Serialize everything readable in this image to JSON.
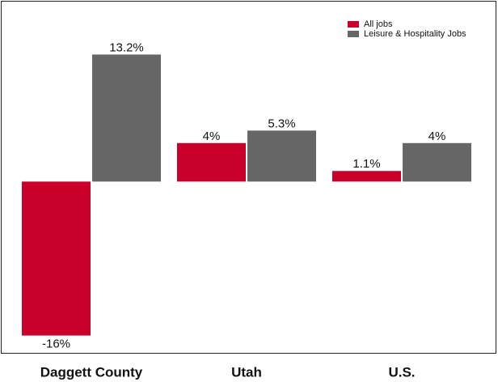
{
  "chart_data": {
    "type": "bar",
    "categories": [
      "Daggett County",
      "Utah",
      "U.S."
    ],
    "series": [
      {
        "name": "All jobs",
        "color": "#c8002a",
        "values": [
          -16,
          4,
          1.1
        ],
        "value_labels": [
          "-16%",
          "4%",
          "1.1%"
        ]
      },
      {
        "name": "Leisure & Hospitality Jobs",
        "color": "#666666",
        "values": [
          13.2,
          5.3,
          4
        ],
        "value_labels": [
          "13.2%",
          "5.3%",
          "4%"
        ]
      }
    ],
    "ylim": [
      -17.8,
      18.7
    ],
    "legend": "upper right"
  }
}
